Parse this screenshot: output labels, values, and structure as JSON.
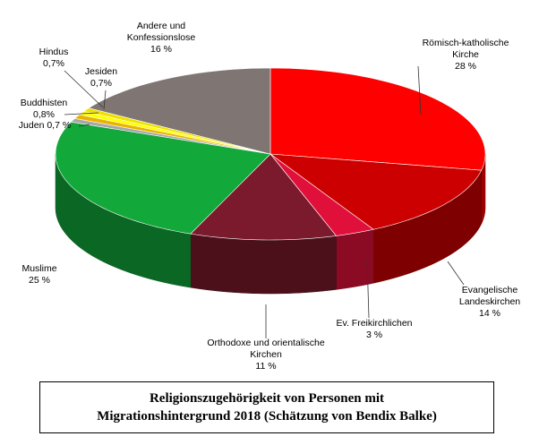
{
  "chart_data": {
    "type": "pie",
    "title": "Religionszugehörigkeit von Personen mit Migrationshintergrund 2018 (Schätzung von Bendix Balke)",
    "slices": [
      {
        "label": "Römisch-katholische Kirche",
        "value": 28,
        "value_label": "28  %",
        "color": "#ff0000"
      },
      {
        "label": "Evangelische Landeskirchen",
        "value": 14,
        "value_label": "14 %",
        "color": "#cc0000"
      },
      {
        "label": "Ev. Freikirchlichen",
        "value": 3,
        "value_label": "3 %",
        "color": "#e0103a"
      },
      {
        "label": "Orthodoxe und orientalische Kirchen",
        "value": 11,
        "value_label": "11  %",
        "color": "#7a1a2c"
      },
      {
        "label": "Muslime",
        "value": 25,
        "value_label": "25 %",
        "color": "#12a83a"
      },
      {
        "label": "Juden",
        "value": 0.7,
        "value_label": "0,7 %",
        "color": "#a6a6a6"
      },
      {
        "label": "Buddhisten",
        "value": 0.8,
        "value_label": "0,8%",
        "color": "#e8b400"
      },
      {
        "label": "Jesiden",
        "value": 0.7,
        "value_label": "0,7%",
        "color": "#ffff00"
      },
      {
        "label": "Hindus",
        "value": 0.7,
        "value_label": "0,7%",
        "color": "#f0e000"
      },
      {
        "label": "Andere und Konfessionslose",
        "value": 16,
        "value_label": "16 %",
        "color": "#7f7674"
      }
    ]
  },
  "labels": {
    "rk": [
      "Römisch-katholische",
      "Kirche",
      "28  %"
    ],
    "ev": [
      "Evangelische",
      "Landeskirchen",
      "14 %"
    ],
    "fk": [
      "Ev. Freikirchlichen",
      "3 %"
    ],
    "or": [
      "Orthodoxe und orientalische",
      "Kirchen",
      "11  %"
    ],
    "mu": [
      "Muslime",
      "25 %"
    ],
    "ju": [
      "Juden 0,7 %"
    ],
    "bu": [
      "Buddhisten",
      "0,8%"
    ],
    "je": [
      "Jesiden",
      "0,7%"
    ],
    "hi": [
      "Hindus",
      "0,7%"
    ],
    "an": [
      "Andere und",
      "Konfessionslose",
      "16 %"
    ]
  },
  "caption": {
    "line1": "Religionszugehörigkeit von Personen mit",
    "line2": "Migrationshintergrund 2018 (Schätzung von Bendix Balke)"
  }
}
